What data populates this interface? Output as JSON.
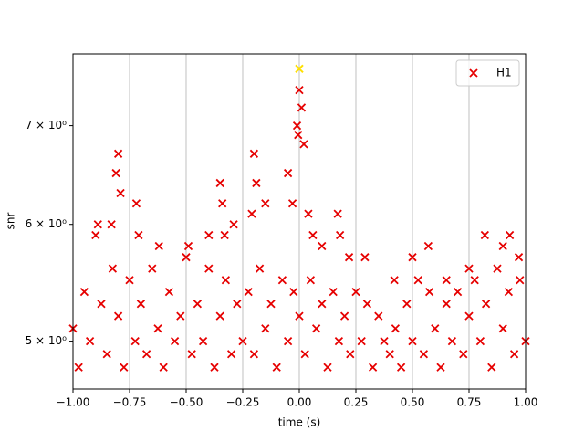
{
  "chart_data": {
    "type": "scatter",
    "xlabel": "time (s)",
    "ylabel": "snr",
    "xlim": [
      -1,
      1
    ],
    "ylim": [
      4.64,
      7.83
    ],
    "log_y": true,
    "grid": "x",
    "legend": "upper right",
    "xticks": [
      {
        "value": -1,
        "label": "−1.00"
      },
      {
        "value": -0.75,
        "label": "−0.75"
      },
      {
        "value": -0.5,
        "label": "−0.50"
      },
      {
        "value": -0.25,
        "label": "−0.25"
      },
      {
        "value": 0,
        "label": "0.00"
      },
      {
        "value": 0.25,
        "label": "0.25"
      },
      {
        "value": 0.5,
        "label": "0.50"
      },
      {
        "value": 0.75,
        "label": "0.75"
      },
      {
        "value": 1,
        "label": "1.00"
      }
    ],
    "yticks": [
      {
        "value": 5,
        "label": "5 × 10⁰"
      },
      {
        "value": 6,
        "label": "6 × 10⁰"
      },
      {
        "value": 7,
        "label": "7 × 10⁰"
      }
    ],
    "series": [
      {
        "name": "H1",
        "color": "#e60000",
        "x": [
          -1.0,
          -0.975,
          -0.95,
          -0.925,
          -0.9,
          -0.875,
          -0.85,
          -0.825,
          -0.8,
          -0.775,
          -0.75,
          -0.725,
          -0.7,
          -0.675,
          -0.65,
          -0.625,
          -0.6,
          -0.575,
          -0.55,
          -0.525,
          -0.5,
          -0.475,
          -0.45,
          -0.425,
          -0.4,
          -0.375,
          -0.35,
          -0.325,
          -0.3,
          -0.275,
          -0.25,
          -0.225,
          -0.2,
          -0.175,
          -0.15,
          -0.125,
          -0.1,
          -0.075,
          -0.05,
          -0.025,
          0.0,
          0.025,
          0.05,
          0.075,
          0.1,
          0.125,
          0.15,
          0.175,
          0.2,
          0.225,
          0.25,
          0.275,
          0.3,
          0.325,
          0.35,
          0.375,
          0.4,
          0.425,
          0.45,
          0.475,
          0.5,
          0.525,
          0.55,
          0.575,
          0.6,
          0.625,
          0.65,
          0.675,
          0.7,
          0.725,
          0.75,
          0.775,
          0.8,
          0.825,
          0.85,
          0.875,
          0.9,
          0.925,
          0.95,
          0.975,
          1.0,
          -0.8,
          -0.81,
          -0.79,
          -0.83,
          -0.72,
          -0.71,
          -0.89,
          -0.62,
          -0.49,
          -0.4,
          -0.34,
          -0.33,
          -0.35,
          -0.29,
          -0.2,
          -0.19,
          -0.21,
          -0.15,
          -0.05,
          -0.03,
          -0.01,
          0.0,
          0.01,
          0.02,
          -0.005,
          0.04,
          0.06,
          0.1,
          0.17,
          0.18,
          0.22,
          0.29,
          0.42,
          0.5,
          0.57,
          0.65,
          0.75,
          0.82,
          0.9,
          0.93,
          0.97
        ],
        "values": [
          5.1,
          4.8,
          5.4,
          5.0,
          5.9,
          5.3,
          4.9,
          5.6,
          5.2,
          4.8,
          5.5,
          5.0,
          5.3,
          4.9,
          5.6,
          5.1,
          4.8,
          5.4,
          5.0,
          5.2,
          5.7,
          4.9,
          5.3,
          5.0,
          5.6,
          4.8,
          5.2,
          5.5,
          4.9,
          5.3,
          5.0,
          5.4,
          4.9,
          5.6,
          5.1,
          5.3,
          4.8,
          5.5,
          5.0,
          5.4,
          5.2,
          4.9,
          5.5,
          5.1,
          5.3,
          4.8,
          5.4,
          5.0,
          5.2,
          4.9,
          5.4,
          5.0,
          5.3,
          4.8,
          5.2,
          5.0,
          4.9,
          5.1,
          4.8,
          5.3,
          5.0,
          5.5,
          4.9,
          5.4,
          5.1,
          4.8,
          5.3,
          5.0,
          5.4,
          4.9,
          5.2,
          5.5,
          5.0,
          5.3,
          4.8,
          5.6,
          5.1,
          5.4,
          4.9,
          5.5,
          5.0,
          6.7,
          6.5,
          6.3,
          6.0,
          6.2,
          5.9,
          6.0,
          5.8,
          5.8,
          5.9,
          6.2,
          5.9,
          6.4,
          6.0,
          6.7,
          6.4,
          6.1,
          6.2,
          6.5,
          6.2,
          7.0,
          7.4,
          7.2,
          6.8,
          6.9,
          6.1,
          5.9,
          5.8,
          6.1,
          5.9,
          5.7,
          5.7,
          5.5,
          5.7,
          5.8,
          5.5,
          5.6,
          5.9,
          5.8,
          5.9,
          5.7
        ]
      }
    ],
    "highlight": {
      "x": 0,
      "y": 7.65,
      "color": "#ffe000"
    }
  }
}
